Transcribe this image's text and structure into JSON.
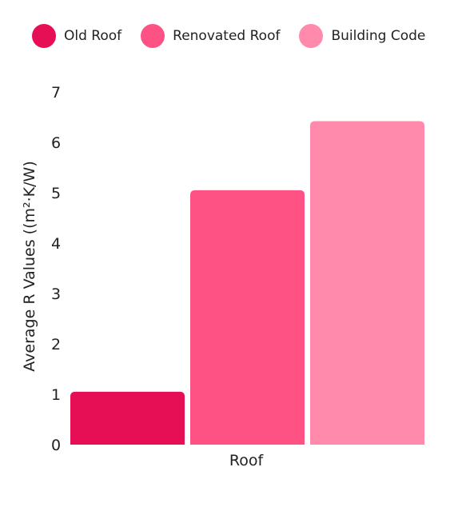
{
  "chart_data": {
    "type": "bar",
    "categories": [
      "Roof"
    ],
    "series": [
      {
        "name": "Old Roof",
        "values": [
          1.05
        ],
        "color": "#e60e54"
      },
      {
        "name": "Renovated Roof",
        "values": [
          5.05
        ],
        "color": "#ff5284"
      },
      {
        "name": "Building Code",
        "values": [
          6.42
        ],
        "color": "#ff8aab"
      }
    ],
    "xlabel": "Roof",
    "ylabel": "Average R Values ((m²·K/W)",
    "ylim": [
      0,
      7
    ],
    "yticks": [
      "0",
      "1",
      "2",
      "3",
      "4",
      "5",
      "6",
      "7"
    ],
    "grid": false,
    "legend_position": "top"
  }
}
